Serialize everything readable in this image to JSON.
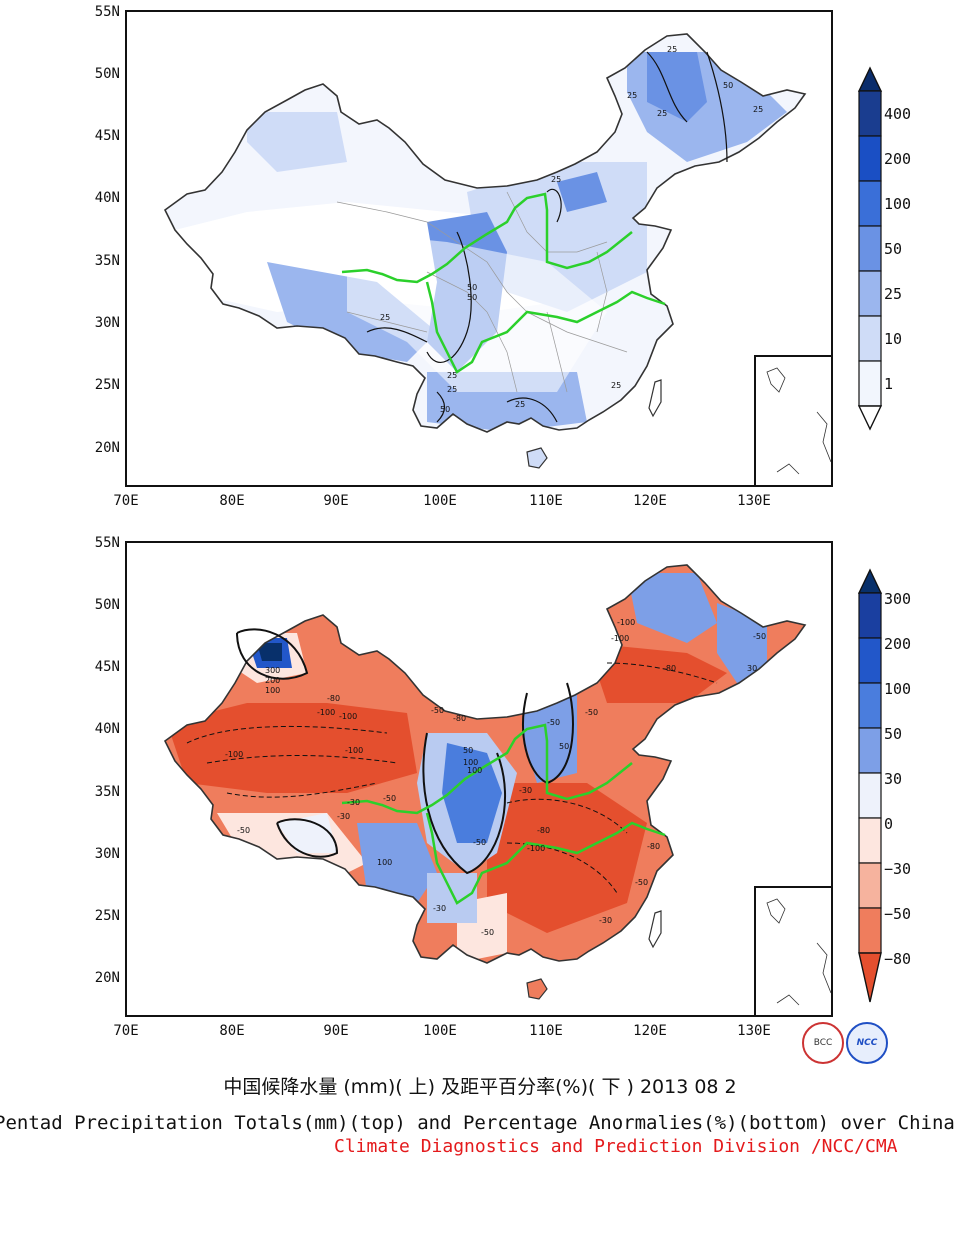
{
  "top_map": {
    "y_labels": [
      "55N",
      "50N",
      "45N",
      "40N",
      "35N",
      "30N",
      "25N",
      "20N"
    ],
    "x_labels": [
      "70E",
      "80E",
      "90E",
      "100E",
      "110E",
      "120E",
      "130E"
    ],
    "contour_labels": [
      "25",
      "25",
      "50",
      "25",
      "25",
      "50",
      "50",
      "25",
      "25",
      "25",
      "50",
      "25",
      "25",
      "25"
    ],
    "colorbar_labels": [
      "400",
      "200",
      "100",
      "50",
      "25",
      "10",
      "1"
    ],
    "colorbar_colors": [
      "#08306b",
      "#1a4fc4",
      "#3a6fd8",
      "#6a92e4",
      "#9bb6ee",
      "#cfdcf7",
      "#f2f6fd"
    ]
  },
  "bottom_map": {
    "y_labels": [
      "55N",
      "50N",
      "45N",
      "40N",
      "35N",
      "30N",
      "25N",
      "20N"
    ],
    "x_labels": [
      "70E",
      "80E",
      "90E",
      "100E",
      "110E",
      "120E",
      "130E"
    ],
    "contour_labels": [
      "300",
      "200",
      "100",
      "-80",
      "-100",
      "-100",
      "-100",
      "-100",
      "-50",
      "-80",
      "100",
      "-50",
      "50",
      "100",
      "-30",
      "-50",
      "-30",
      "-80",
      "-100",
      "-50",
      "-50",
      "-100",
      "-80",
      "-30",
      "-80",
      "-50",
      "-100",
      "-50",
      "30",
      "-30",
      "-50",
      "100",
      "50",
      "-50",
      "-30"
    ],
    "colorbar_labels": [
      "300",
      "200",
      "100",
      "50",
      "30",
      "0",
      "−30",
      "−50",
      "−80"
    ],
    "colorbar_colors": [
      "#08306b",
      "#2257c9",
      "#4a7ddd",
      "#7d9fe7",
      "#b9cbf1",
      "#eef2fb",
      "#fde6df",
      "#f6b39e",
      "#ef7d5d",
      "#e44f2e"
    ]
  },
  "logos": [
    "BCC",
    "NCC"
  ],
  "caption_cn": "中国候降水量 (mm)( 上) 及距平百分率(%)( 下 ) 2013 08 2",
  "caption_en": "Pentad Precipitation Totals(mm)(top) and Percentage Anormalies(%)(bottom) over China",
  "caption_org": "Climate Diagnostics and Prediction Division /NCC/CMA"
}
